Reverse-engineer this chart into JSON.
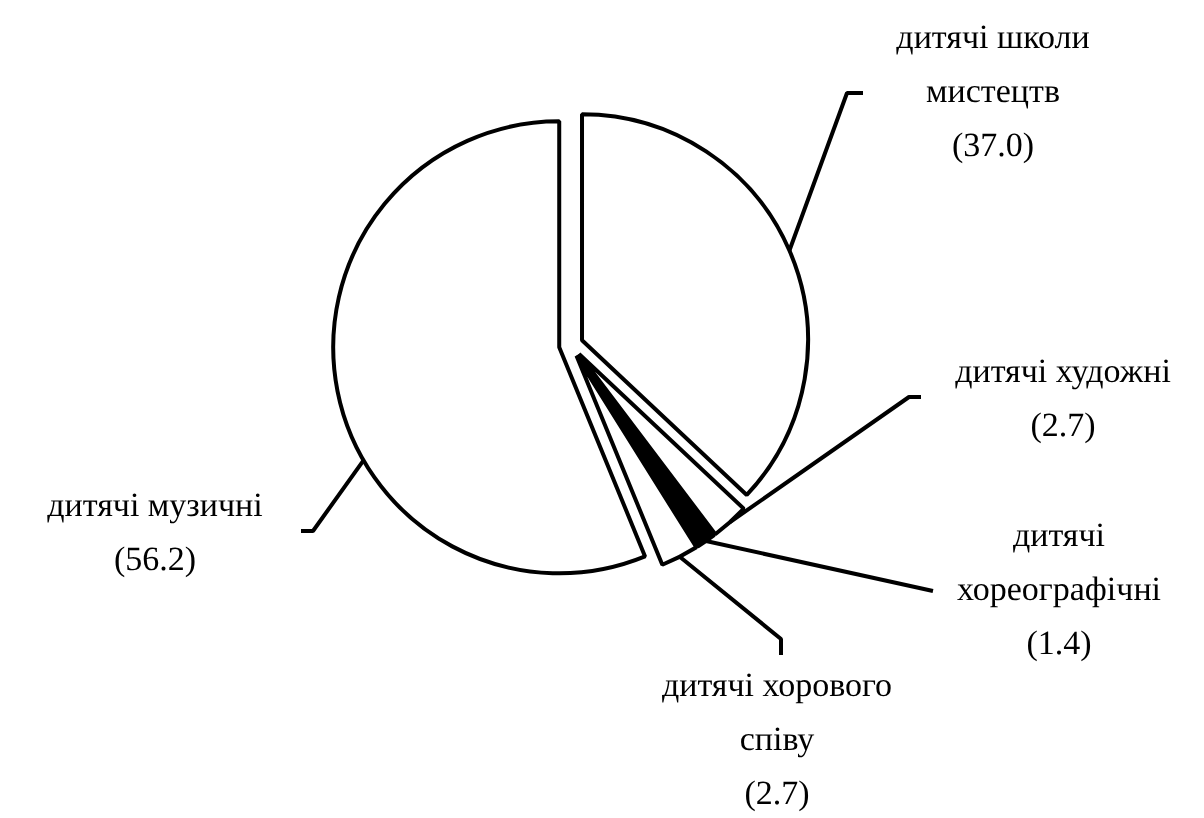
{
  "chart_data": {
    "type": "pie",
    "categories": [
      "дитячі школи мистецтв",
      "дитячі художні",
      "дитячі хореографічні",
      "дитячі хорового співу",
      "дитячі музичні"
    ],
    "values": [
      37.0,
      2.7,
      1.4,
      2.7,
      56.2
    ],
    "colors": [
      "#ffffff",
      "#ffffff",
      "#000000",
      "#ffffff",
      "#ffffff"
    ],
    "value_labels": [
      "(37.0)",
      "(2.7)",
      "(1.4)",
      "(2.7)",
      "(56.2)"
    ]
  }
}
